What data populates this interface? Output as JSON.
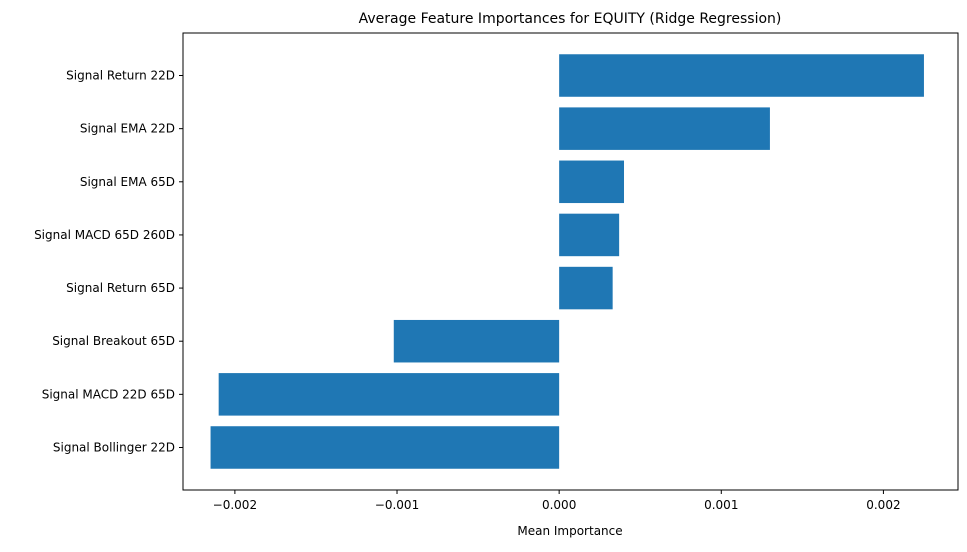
{
  "chart_data": {
    "type": "bar",
    "orientation": "horizontal",
    "title": "Average Feature Importances for EQUITY (Ridge Regression)",
    "xlabel": "Mean Importance",
    "ylabel": "",
    "categories": [
      "Signal Return 22D",
      "Signal EMA 22D",
      "Signal EMA 65D",
      "Signal MACD 65D 260D",
      "Signal Return 65D",
      "Signal Breakout 65D",
      "Signal MACD 22D 65D",
      "Signal Bollinger 22D"
    ],
    "values": [
      0.00225,
      0.0013,
      0.0004,
      0.00037,
      0.00033,
      -0.00102,
      -0.0021,
      -0.00215
    ],
    "xlim": [
      -0.00232,
      0.00246
    ],
    "xticks": [
      -0.002,
      -0.001,
      0.0,
      0.001,
      0.002
    ],
    "xtick_labels": [
      "−0.002",
      "−0.001",
      "0.000",
      "0.001",
      "0.002"
    ],
    "grid": false,
    "color": "#1f77b4"
  }
}
